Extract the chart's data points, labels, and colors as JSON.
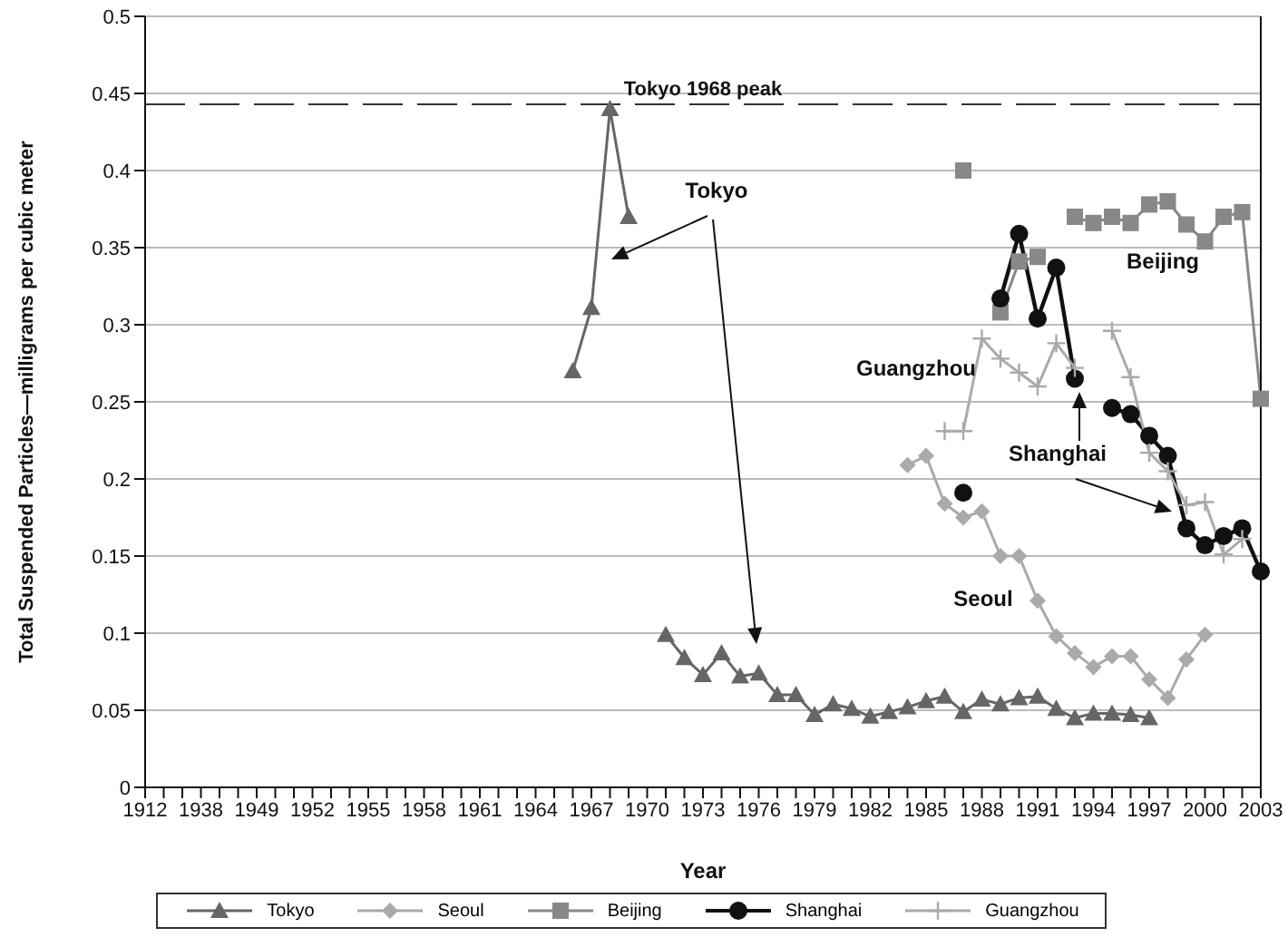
{
  "chart_data": {
    "type": "line",
    "ylabel": "Total Suspended Particles—milligrams per cubic meter",
    "xlabel": "Year",
    "categories": [
      "1912",
      null,
      null,
      "1938",
      null,
      null,
      "1949",
      null,
      null,
      "1952",
      null,
      null,
      "1955",
      null,
      null,
      "1958",
      null,
      null,
      "1961",
      null,
      null,
      "1964",
      null,
      null,
      "1967",
      null,
      null,
      "1970",
      null,
      null,
      "1973",
      null,
      null,
      "1976",
      null,
      null,
      "1979",
      null,
      null,
      "1982",
      null,
      null,
      "1985",
      null,
      null,
      "1988",
      null,
      null,
      "1991",
      null,
      null,
      "1994",
      null,
      null,
      "1997",
      null,
      null,
      "2000",
      null,
      null,
      "2003"
    ],
    "ylim": [
      0,
      0.5
    ],
    "yticks": [
      0,
      0.05,
      0.1,
      0.15,
      0.2,
      0.25,
      0.3,
      0.35,
      0.4,
      0.45,
      0.5
    ],
    "grid": "y",
    "legend": "bottom",
    "line_style": "solid",
    "series": [
      {
        "name": "Tokyo",
        "color": "#666666",
        "marker": "triangle",
        "values": [
          null,
          null,
          null,
          null,
          null,
          null,
          null,
          null,
          null,
          null,
          null,
          null,
          null,
          null,
          null,
          null,
          null,
          null,
          null,
          null,
          null,
          null,
          null,
          0.27,
          0.311,
          0.44,
          0.37,
          null,
          0.099,
          0.084,
          0.073,
          0.087,
          0.072,
          0.074,
          0.06,
          0.06,
          0.047,
          0.054,
          0.051,
          0.046,
          0.049,
          0.052,
          0.056,
          0.059,
          0.049,
          0.057,
          0.054,
          0.058,
          0.059,
          0.051,
          0.045,
          0.048,
          0.048,
          0.047,
          0.045,
          null,
          null,
          null,
          null,
          null,
          null
        ]
      },
      {
        "name": "Seoul",
        "color": "#aaaaaa",
        "marker": "diamond",
        "values": [
          null,
          null,
          null,
          null,
          null,
          null,
          null,
          null,
          null,
          null,
          null,
          null,
          null,
          null,
          null,
          null,
          null,
          null,
          null,
          null,
          null,
          null,
          null,
          null,
          null,
          null,
          null,
          null,
          null,
          null,
          null,
          null,
          null,
          null,
          null,
          null,
          null,
          null,
          null,
          null,
          null,
          0.209,
          0.215,
          0.184,
          0.175,
          0.179,
          0.15,
          0.15,
          0.121,
          0.098,
          0.087,
          0.078,
          0.085,
          0.085,
          0.07,
          0.058,
          0.083,
          0.099,
          null,
          null,
          null
        ]
      },
      {
        "name": "Beijing",
        "color": "#888888",
        "marker": "square",
        "values": [
          null,
          null,
          null,
          null,
          null,
          null,
          null,
          null,
          null,
          null,
          null,
          null,
          null,
          null,
          null,
          null,
          null,
          null,
          null,
          null,
          null,
          null,
          null,
          null,
          null,
          null,
          null,
          null,
          null,
          null,
          null,
          null,
          null,
          null,
          null,
          null,
          null,
          null,
          null,
          null,
          null,
          null,
          null,
          null,
          0.4,
          null,
          0.308,
          0.341,
          0.344,
          null,
          0.37,
          0.366,
          0.37,
          0.366,
          0.378,
          0.38,
          0.365,
          0.354,
          0.37,
          0.373,
          0.252
        ]
      },
      {
        "name": "Shanghai",
        "color": "#111111",
        "marker": "circle",
        "values": [
          null,
          null,
          null,
          null,
          null,
          null,
          null,
          null,
          null,
          null,
          null,
          null,
          null,
          null,
          null,
          null,
          null,
          null,
          null,
          null,
          null,
          null,
          null,
          null,
          null,
          null,
          null,
          null,
          null,
          null,
          null,
          null,
          null,
          null,
          null,
          null,
          null,
          null,
          null,
          null,
          null,
          null,
          null,
          null,
          0.191,
          null,
          0.317,
          0.359,
          0.304,
          0.337,
          0.265,
          null,
          0.246,
          0.242,
          0.228,
          0.215,
          0.168,
          0.157,
          0.163,
          0.168,
          0.14
        ]
      },
      {
        "name": "Guangzhou",
        "color": "#aaaaaa",
        "marker": "cross",
        "values": [
          null,
          null,
          null,
          null,
          null,
          null,
          null,
          null,
          null,
          null,
          null,
          null,
          null,
          null,
          null,
          null,
          null,
          null,
          null,
          null,
          null,
          null,
          null,
          null,
          null,
          null,
          null,
          null,
          null,
          null,
          null,
          null,
          null,
          null,
          null,
          null,
          null,
          null,
          null,
          null,
          null,
          null,
          null,
          0.231,
          0.231,
          0.291,
          0.278,
          0.269,
          0.26,
          0.288,
          0.272,
          null,
          0.296,
          0.266,
          0.217,
          0.205,
          0.183,
          0.185,
          0.151,
          0.161,
          null
        ]
      }
    ],
    "ref_lines": [
      {
        "axis": "y",
        "value": 0.443,
        "label": "Tokyo 1968 peak",
        "color": "#333333",
        "line_style": "dashed"
      }
    ],
    "annotations": [
      "Tokyo",
      "Guangzhou",
      "Shanghai",
      "Seoul",
      "Beijing"
    ]
  }
}
